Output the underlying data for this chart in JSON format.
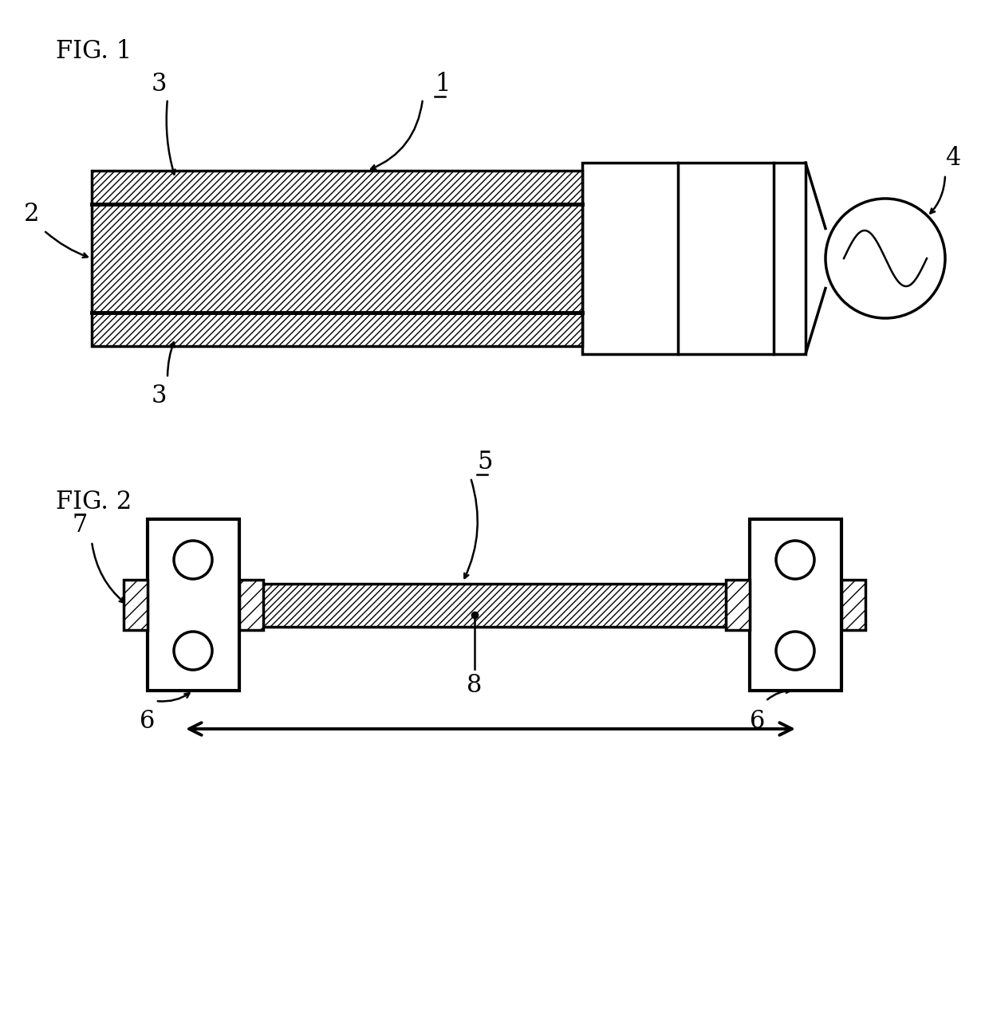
{
  "bg_color": "#ffffff",
  "fig1_label": "FIG. 1",
  "fig2_label": "FIG. 2",
  "label_1": "1",
  "label_2": "2",
  "label_3a": "3",
  "label_3b": "3",
  "label_4": "4",
  "label_5": "5",
  "label_6a": "6",
  "label_6b": "6",
  "label_7": "7",
  "label_8": "8",
  "hatch_pattern": "////",
  "line_color": "#000000",
  "fill_color": "#ffffff"
}
